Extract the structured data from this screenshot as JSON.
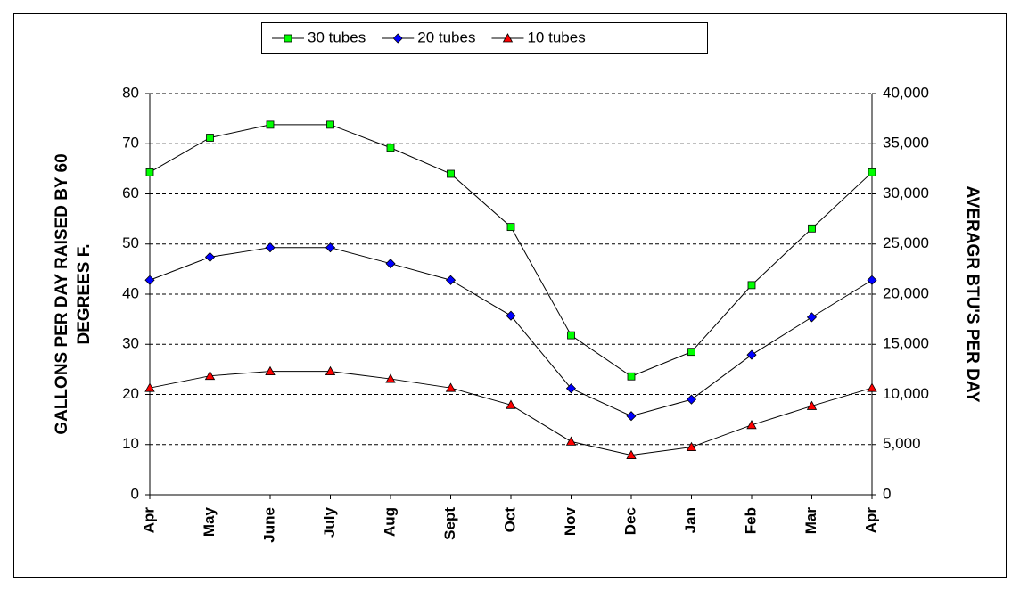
{
  "chart_data": {
    "type": "line",
    "categories": [
      "Apr",
      "May",
      "June",
      "July",
      "Aug",
      "Sept",
      "Oct",
      "Nov",
      "Dec",
      "Jan",
      "Feb",
      "Mar",
      "Apr"
    ],
    "series": [
      {
        "name": "30 tubes",
        "color": "#00ff00",
        "marker": "square",
        "values": [
          64.3,
          71.2,
          73.8,
          73.8,
          69.2,
          64,
          53.4,
          31.8,
          23.6,
          28.5,
          41.8,
          53.1,
          64.3
        ]
      },
      {
        "name": "20 tubes",
        "color": "#0000ff",
        "marker": "diamond",
        "values": [
          42.8,
          47.4,
          49.3,
          49.3,
          46.1,
          42.8,
          35.7,
          21.2,
          15.7,
          19,
          27.9,
          35.4,
          42.8
        ]
      },
      {
        "name": "10 tubes",
        "color": "#ff0000",
        "marker": "triangle",
        "values": [
          21.3,
          23.7,
          24.6,
          24.6,
          23.1,
          21.3,
          17.9,
          10.6,
          7.9,
          9.5,
          13.9,
          17.7,
          21.3
        ]
      }
    ],
    "y_label": [
      "GALLONS PER DAY RAISED BY 60",
      "DEGREES F."
    ],
    "y2_label": "AVERAGR BTU'S PER DAY",
    "ylim": [
      0,
      80
    ],
    "yticks": [
      0,
      10,
      20,
      30,
      40,
      50,
      60,
      70,
      80
    ],
    "y2lim": [
      0,
      40000
    ],
    "y2ticks": [
      0,
      {
        "value": 5000,
        "label": "5,000"
      },
      {
        "value": 10000,
        "label": "10,000"
      },
      {
        "value": 15000,
        "label": "15,000"
      },
      {
        "value": 20000,
        "label": "20,000"
      },
      {
        "value": 25000,
        "label": "25,000"
      },
      {
        "value": 30000,
        "label": "30,000"
      },
      {
        "value": 35000,
        "label": "35,000"
      },
      {
        "value": 40000,
        "label": "40,000"
      }
    ],
    "grid": true,
    "legend": "top"
  }
}
